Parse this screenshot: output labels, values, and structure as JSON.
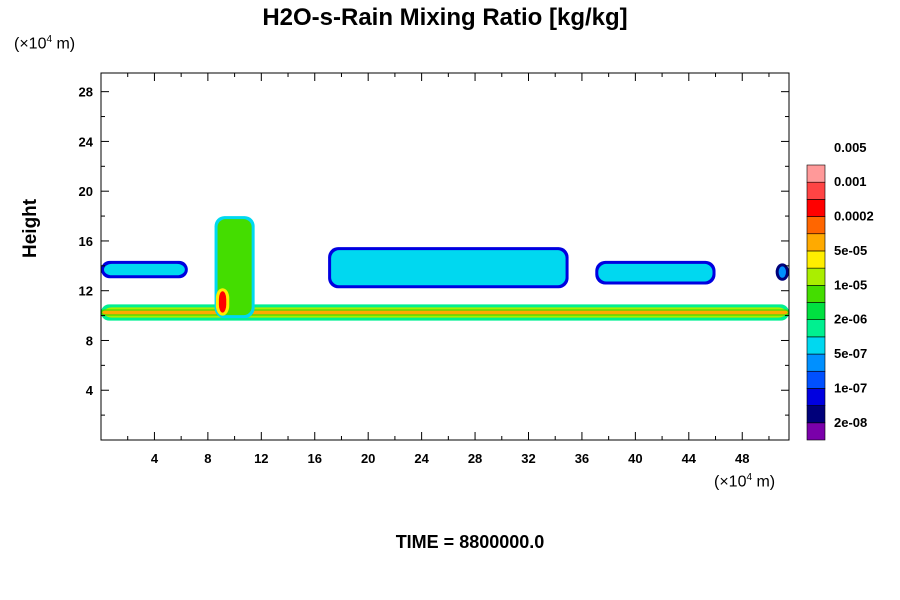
{
  "chart_data": {
    "type": "heatmap",
    "title": "H2O-s-Rain Mixing Ratio [kg/kg]",
    "ylabel": "Height",
    "x_unit": {
      "prefix": "(×10",
      "exp": "4",
      "suffix": " m)"
    },
    "y_unit": {
      "prefix": "(×10",
      "exp": "4",
      "suffix": " m)"
    },
    "xlim": [
      0,
      51.5
    ],
    "ylim": [
      0,
      29.5
    ],
    "x_ticks": [
      4,
      8,
      12,
      16,
      20,
      24,
      28,
      32,
      36,
      40,
      44,
      48
    ],
    "y_ticks": [
      4,
      8,
      12,
      16,
      20,
      24,
      28
    ],
    "colorbar": {
      "colors": [
        "#7a00aa",
        "#00007a",
        "#0000e0",
        "#0050ff",
        "#0090ff",
        "#00d8f0",
        "#00f090",
        "#00e040",
        "#44dd00",
        "#aaee00",
        "#ffee00",
        "#ffaa00",
        "#ff6600",
        "#ff0000",
        "#ff4444",
        "#ff9999"
      ],
      "labels": [
        "2e-08",
        "1e-07",
        "5e-07",
        "2e-06",
        "1e-05",
        "5e-05",
        "0.0002",
        "0.001",
        "0.005"
      ]
    },
    "regions": [
      {
        "name": "lower-band",
        "x0": 0,
        "x1": 51.5,
        "y0": 9.6,
        "y1": 10.9,
        "level": 9
      },
      {
        "name": "lower-band-core",
        "x0": 0,
        "x1": 51.5,
        "y0": 10.0,
        "y1": 10.5,
        "level": 11
      },
      {
        "name": "upper-cloud-left",
        "x0": 0,
        "x1": 6.5,
        "y0": 13.0,
        "y1": 14.4,
        "level": 5
      },
      {
        "name": "upper-cloud-center",
        "x0": 17,
        "x1": 35,
        "y0": 12.2,
        "y1": 15.5,
        "level": 5
      },
      {
        "name": "upper-cloud-right",
        "x0": 37,
        "x1": 46,
        "y0": 12.5,
        "y1": 14.4,
        "level": 5
      },
      {
        "name": "upper-cloud-edge",
        "x0": 50.5,
        "x1": 51.5,
        "y0": 12.8,
        "y1": 14.2,
        "level": 4
      },
      {
        "name": "convective-column",
        "x0": 8.5,
        "x1": 11.5,
        "y0": 9.8,
        "y1": 18.0,
        "level": 8
      },
      {
        "name": "convective-core",
        "x0": 8.6,
        "x1": 9.6,
        "y0": 10.0,
        "y1": 12.2,
        "level": 13
      }
    ],
    "time_label": "TIME = 8800000.0"
  }
}
